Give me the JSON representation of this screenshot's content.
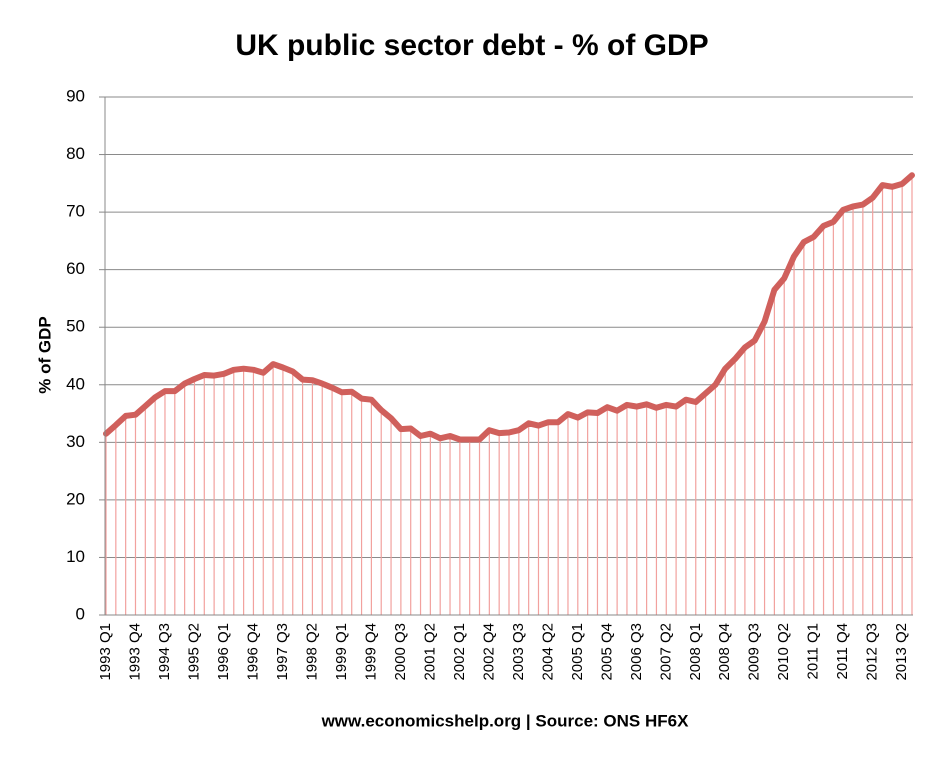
{
  "chart_data": {
    "type": "line",
    "title": "UK public sector debt - % of GDP",
    "y_label": "% of GDP",
    "source": "www.economicshelp.org | Source: ONS HF6X",
    "categories": [
      "1993 Q1",
      null,
      null,
      "1993 Q4",
      null,
      null,
      "1994 Q3",
      null,
      null,
      "1995 Q2",
      null,
      null,
      "1996 Q1",
      null,
      null,
      "1996 Q4",
      null,
      null,
      "1997 Q3",
      null,
      null,
      "1998 Q2",
      null,
      null,
      "1999 Q1",
      null,
      null,
      "1999 Q4",
      null,
      null,
      "2000 Q3",
      null,
      null,
      "2001 Q2",
      null,
      null,
      "2002 Q1",
      null,
      null,
      "2002 Q4",
      null,
      null,
      "2003 Q3",
      null,
      null,
      "2004 Q2",
      null,
      null,
      "2005 Q1",
      null,
      null,
      "2005 Q4",
      null,
      null,
      "2006 Q3",
      null,
      null,
      "2007 Q2",
      null,
      null,
      "2008 Q1",
      null,
      null,
      "2008 Q4",
      null,
      null,
      "2009 Q3",
      null,
      null,
      "2010 Q2",
      null,
      null,
      "2011 Q1",
      null,
      null,
      "2011 Q4",
      null,
      null,
      "2012 Q3",
      null,
      null,
      "2013 Q2",
      null
    ],
    "values": [
      31.5,
      33,
      34.6,
      34.8,
      36.3,
      37.8,
      38.9,
      38.9,
      40.2,
      41,
      41.7,
      41.6,
      41.9,
      42.6,
      42.8,
      42.6,
      42.1,
      43.6,
      43,
      42.3,
      40.9,
      40.8,
      40.2,
      39.5,
      38.7,
      38.8,
      37.6,
      37.4,
      35.6,
      34.2,
      32.3,
      32.4,
      31.1,
      31.5,
      30.7,
      31.1,
      30.5,
      30.5,
      30.5,
      32.1,
      31.6,
      31.7,
      32.1,
      33.3,
      32.9,
      33.5,
      33.5,
      34.9,
      34.3,
      35.2,
      35.1,
      36.1,
      35.5,
      36.5,
      36.2,
      36.6,
      36,
      36.5,
      36.2,
      37.4,
      37,
      38.5,
      40,
      42.8,
      44.5,
      46.5,
      47.7,
      51,
      56.5,
      58.5,
      62.3,
      64.8,
      65.7,
      67.6,
      68.3,
      70.4,
      71,
      71.3,
      72.5,
      74.7,
      74.4,
      74.9,
      76.4
    ],
    "color": "#d0605c",
    "drop_line_color": "#f2a19e",
    "ylim": [
      0,
      90
    ],
    "yticks": [
      0,
      10,
      20,
      30,
      40,
      50,
      60,
      70,
      80,
      90
    ],
    "grid": true
  }
}
